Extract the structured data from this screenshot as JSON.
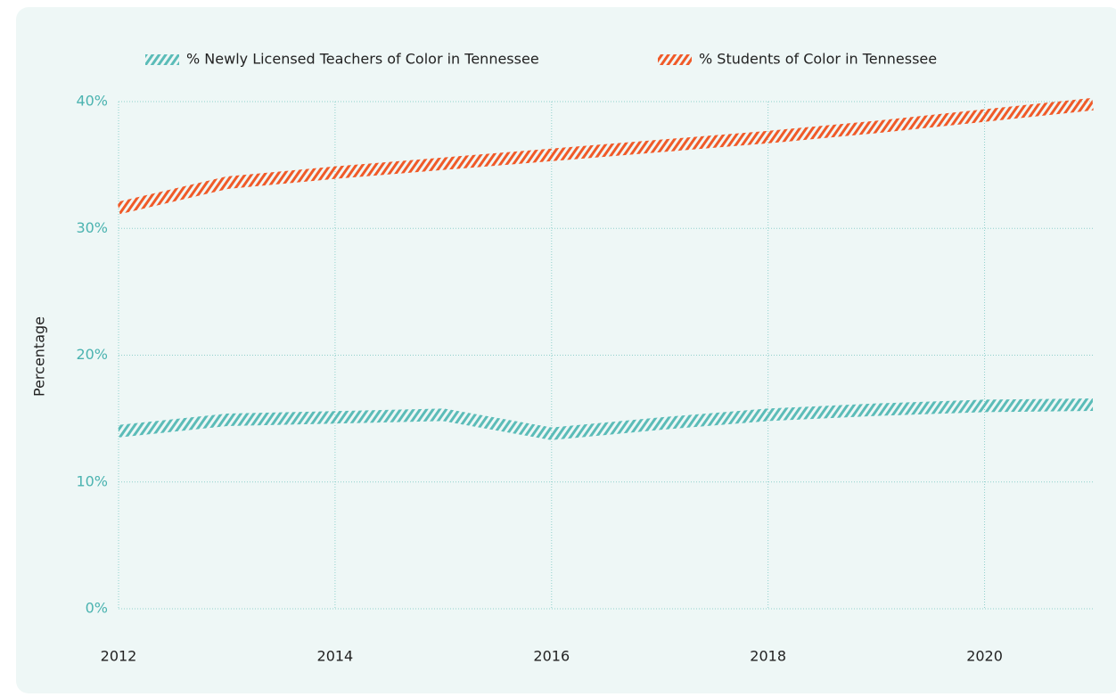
{
  "chart_data": {
    "type": "line",
    "y_label": "Percentage",
    "x": [
      2012,
      2013,
      2014,
      2015,
      2016,
      2017,
      2018,
      2019,
      2020,
      2021
    ],
    "series": [
      {
        "name": "% Newly Licensed Teachers of Color in Tennessee",
        "color": "#5bbcb8",
        "values": [
          14.0,
          14.9,
          15.1,
          15.3,
          13.8,
          14.6,
          15.3,
          15.7,
          16.0,
          16.1
        ]
      },
      {
        "name": "% Students of Color in Tennessee",
        "color": "#f05a28",
        "values": [
          31.6,
          33.6,
          34.4,
          35.1,
          35.8,
          36.5,
          37.2,
          38.0,
          38.9,
          39.8
        ]
      }
    ],
    "xlim": [
      2012,
      2021
    ],
    "xticks": [
      2012,
      2014,
      2016,
      2018,
      2020
    ],
    "ylim": [
      0,
      40
    ],
    "yticks": [
      {
        "value": 0,
        "label": "0%"
      },
      {
        "value": 10,
        "label": "10%"
      },
      {
        "value": 20,
        "label": "20%"
      },
      {
        "value": 30,
        "label": "30%"
      },
      {
        "value": 40,
        "label": "40%"
      }
    ],
    "grid": true,
    "legend": "top"
  }
}
